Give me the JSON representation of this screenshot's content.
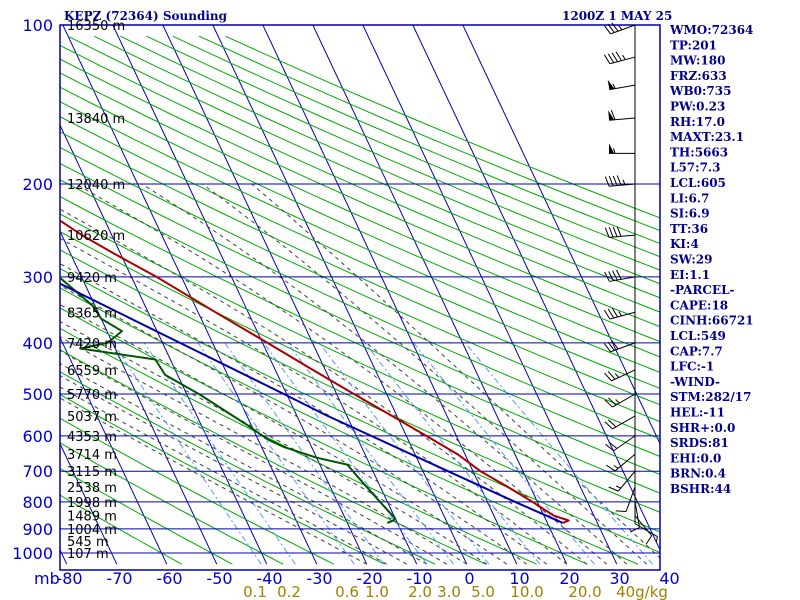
{
  "header": {
    "station_title": "KEPZ (72364) Sounding",
    "time_title": "1200Z  1 MAY 25"
  },
  "indices": [
    "WMO:72364",
    "TP:201",
    "MW:180",
    "FRZ:633",
    "WB0:735",
    "PW:0.23",
    "RH:17.0",
    "MAXT:23.1",
    "TH:5663",
    "L57:7.3",
    "LCL:605",
    "LI:6.7",
    "SI:6.9",
    "TT:36",
    "KI:4",
    "SW:29",
    "EI:1.1",
    "-PARCEL-",
    "CAPE:18",
    "CINH:66721",
    "LCL:549",
    "CAP:7.7",
    "LFC:-1",
    "-WIND-",
    "STM:282/17",
    "HEL:-11",
    "SHR+:0.0",
    "SRDS:81",
    "EHI:0.0",
    "BRN:0.4",
    "BSHR:44"
  ],
  "colors": {
    "grid": "#0000aa",
    "dry_adiabat": "#00aa00",
    "moist_adiabat": "#404040",
    "mixing_ratio": "#5599ff",
    "temperature": "#aa0000",
    "dewpoint": "#005500",
    "parcel": "#0000aa",
    "mixing_label": "#a08000"
  },
  "chart_data": {
    "type": "skew-t",
    "pressure_axis": {
      "unit_label": "mb",
      "ticks": [
        "100",
        "200",
        "300",
        "400",
        "500",
        "600",
        "700",
        "800",
        "900",
        "1000"
      ],
      "values": [
        100,
        200,
        300,
        400,
        500,
        600,
        700,
        800,
        900,
        1000
      ],
      "range": [
        100,
        1000
      ],
      "scale": "log"
    },
    "temperature_axis": {
      "ticks": [
        "-80",
        "-70",
        "-60",
        "-50",
        "-40",
        "-30",
        "-20",
        "-10",
        "0",
        "10",
        "20",
        "30",
        "40"
      ],
      "values": [
        -80,
        -70,
        -60,
        -50,
        -40,
        -30,
        -20,
        -10,
        0,
        10,
        20,
        30,
        40
      ],
      "range": [
        -80,
        40
      ]
    },
    "height_labels": [
      {
        "p": 100,
        "label": "16350 m"
      },
      {
        "p": 150,
        "label": "13840 m"
      },
      {
        "p": 200,
        "label": "12040 m"
      },
      {
        "p": 250,
        "label": "10620 m"
      },
      {
        "p": 300,
        "label": "9420 m"
      },
      {
        "p": 350,
        "label": "8365 m"
      },
      {
        "p": 400,
        "label": "7420 m"
      },
      {
        "p": 450,
        "label": "6559 m"
      },
      {
        "p": 500,
        "label": "5770 m"
      },
      {
        "p": 550,
        "label": "5037 m"
      },
      {
        "p": 600,
        "label": "4353 m"
      },
      {
        "p": 650,
        "label": "3714 m"
      },
      {
        "p": 700,
        "label": "3115 m"
      },
      {
        "p": 750,
        "label": "2538 m"
      },
      {
        "p": 800,
        "label": "1998 m"
      },
      {
        "p": 850,
        "label": "1489 m"
      },
      {
        "p": 900,
        "label": "1004 m"
      },
      {
        "p": 950,
        "label": "545 m"
      },
      {
        "p": 1000,
        "label": "107 m"
      }
    ],
    "mixing_ratio_labels": [
      "0.1",
      "0.2",
      "0.6",
      "1.0",
      "2.0",
      "3.0",
      "5.0",
      "10.0",
      "20.0",
      "40g/kg"
    ],
    "mixing_ratio_values": [
      0.1,
      0.2,
      0.6,
      1.0,
      2.0,
      3.0,
      5.0,
      10.0,
      20.0,
      40.0
    ],
    "series": [
      {
        "id": "temperature",
        "points": [
          {
            "p": 877,
            "t": 23.1
          },
          {
            "p": 868,
            "t": 24.5
          },
          {
            "p": 850,
            "t": 22.0
          },
          {
            "p": 800,
            "t": 19.0
          },
          {
            "p": 750,
            "t": 15.5
          },
          {
            "p": 700,
            "t": 11.5
          },
          {
            "p": 650,
            "t": 8.5
          },
          {
            "p": 600,
            "t": 4.0
          },
          {
            "p": 550,
            "t": -1.0
          },
          {
            "p": 500,
            "t": -6.5
          },
          {
            "p": 450,
            "t": -12.5
          },
          {
            "p": 400,
            "t": -19.0
          },
          {
            "p": 350,
            "t": -26.5
          },
          {
            "p": 300,
            "t": -35.0
          },
          {
            "p": 270,
            "t": -41.5
          },
          {
            "p": 250,
            "t": -46.0
          },
          {
            "p": 220,
            "t": -52.0
          },
          {
            "p": 200,
            "t": -56.5
          },
          {
            "p": 170,
            "t": -62.0
          },
          {
            "p": 150,
            "t": -65.5
          },
          {
            "p": 140,
            "t": -66.5
          },
          {
            "p": 125,
            "t": -69.5
          },
          {
            "p": 110,
            "t": -71.0
          },
          {
            "p": 100,
            "t": -72.5
          }
        ]
      },
      {
        "id": "dewpoint",
        "points": [
          {
            "p": 877,
            "t": -12.0
          },
          {
            "p": 867,
            "t": -10.5
          },
          {
            "p": 860,
            "t": -10.0
          },
          {
            "p": 800,
            "t": -11.5
          },
          {
            "p": 720,
            "t": -13.5
          },
          {
            "p": 680,
            "t": -14.5
          },
          {
            "p": 660,
            "t": -20.0
          },
          {
            "p": 630,
            "t": -25.5
          },
          {
            "p": 610,
            "t": -28.0
          },
          {
            "p": 570,
            "t": -31.0
          },
          {
            "p": 500,
            "t": -37.5
          },
          {
            "p": 460,
            "t": -42.5
          },
          {
            "p": 430,
            "t": -43.0
          },
          {
            "p": 410,
            "t": -57.0
          },
          {
            "p": 400,
            "t": -51.0
          },
          {
            "p": 380,
            "t": -47.0
          },
          {
            "p": 360,
            "t": -50.0
          },
          {
            "p": 340,
            "t": -50.5
          },
          {
            "p": 300,
            "t": -54.5
          },
          {
            "p": 250,
            "t": -63.0
          },
          {
            "p": 230,
            "t": -65.5
          },
          {
            "p": 200,
            "t": -70.5
          },
          {
            "p": 170,
            "t": -76.0
          },
          {
            "p": 150,
            "t": -80.0
          },
          {
            "p": 125,
            "t": -84.5
          },
          {
            "p": 110,
            "t": -86.0
          }
        ]
      },
      {
        "id": "parcel",
        "points": [
          {
            "p": 877,
            "t": 23.1
          },
          {
            "p": 800,
            "t": 15.5
          },
          {
            "p": 700,
            "t": 5.0
          },
          {
            "p": 600,
            "t": -7.0
          },
          {
            "p": 549,
            "t": -14.0
          },
          {
            "p": 500,
            "t": -20.5
          },
          {
            "p": 400,
            "t": -36.5
          },
          {
            "p": 300,
            "t": -57.0
          },
          {
            "p": 250,
            "t": -69.0
          },
          {
            "p": 200,
            "t": -84.0
          }
        ]
      }
    ],
    "wind_profile": [
      {
        "p": 100,
        "dir": 250,
        "spd": 35
      },
      {
        "p": 115,
        "dir": 255,
        "spd": 45
      },
      {
        "p": 130,
        "dir": 260,
        "spd": 55
      },
      {
        "p": 150,
        "dir": 265,
        "spd": 60
      },
      {
        "p": 175,
        "dir": 270,
        "spd": 55
      },
      {
        "p": 200,
        "dir": 265,
        "spd": 45
      },
      {
        "p": 250,
        "dir": 265,
        "spd": 40
      },
      {
        "p": 300,
        "dir": 260,
        "spd": 40
      },
      {
        "p": 350,
        "dir": 255,
        "spd": 35
      },
      {
        "p": 400,
        "dir": 250,
        "spd": 30
      },
      {
        "p": 450,
        "dir": 245,
        "spd": 25
      },
      {
        "p": 500,
        "dir": 240,
        "spd": 25
      },
      {
        "p": 550,
        "dir": 240,
        "spd": 20
      },
      {
        "p": 600,
        "dir": 235,
        "spd": 20
      },
      {
        "p": 650,
        "dir": 230,
        "spd": 15
      },
      {
        "p": 700,
        "dir": 220,
        "spd": 15
      },
      {
        "p": 750,
        "dir": 200,
        "spd": 10
      },
      {
        "p": 800,
        "dir": 170,
        "spd": 10
      },
      {
        "p": 850,
        "dir": 140,
        "spd": 10
      },
      {
        "p": 880,
        "dir": 120,
        "spd": 5
      }
    ]
  }
}
